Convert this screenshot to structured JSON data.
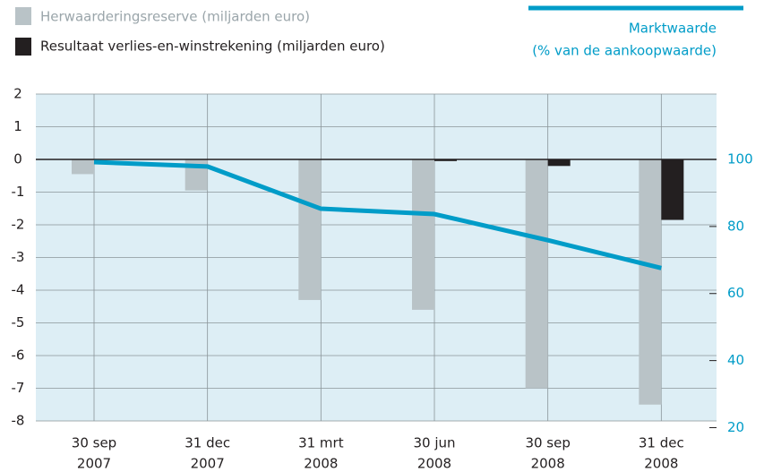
{
  "chart_data": {
    "type": "bar",
    "categories": [
      [
        "30 sep",
        "2007"
      ],
      [
        "31 dec",
        "2007"
      ],
      [
        "31 mrt",
        "2008"
      ],
      [
        "30 jun",
        "2008"
      ],
      [
        "30 sep",
        "2008"
      ],
      [
        "31 dec",
        "2008"
      ]
    ],
    "series": [
      {
        "name": "Herwaarderingsreserve (miljarden euro)",
        "color": "#b9c3c7",
        "type": "bar",
        "values": [
          -0.45,
          -0.95,
          -4.3,
          -4.6,
          -7.0,
          -7.5
        ]
      },
      {
        "name": "Resultaat verlies-en-winstrekening (miljarden euro)",
        "color": "#231f20",
        "type": "bar",
        "values": [
          0,
          0,
          0,
          -0.05,
          -0.2,
          -1.85
        ]
      },
      {
        "name": "Marktwaarde",
        "color": "#009cc8",
        "type": "line",
        "axis": "y2",
        "values": [
          99.2,
          97.9,
          85.3,
          83.7,
          75.9,
          67.6
        ]
      }
    ],
    "y2_label": "(% van de aankoopwaarde)",
    "ylim": [
      2,
      -8
    ],
    "yticks": [
      2,
      1,
      0,
      -1,
      -2,
      -3,
      -4,
      -5,
      -6,
      -7,
      -8
    ],
    "y2lim": [
      119.5,
      22
    ],
    "y2ticks": [
      100,
      80,
      60,
      40,
      20
    ],
    "grid": true
  }
}
